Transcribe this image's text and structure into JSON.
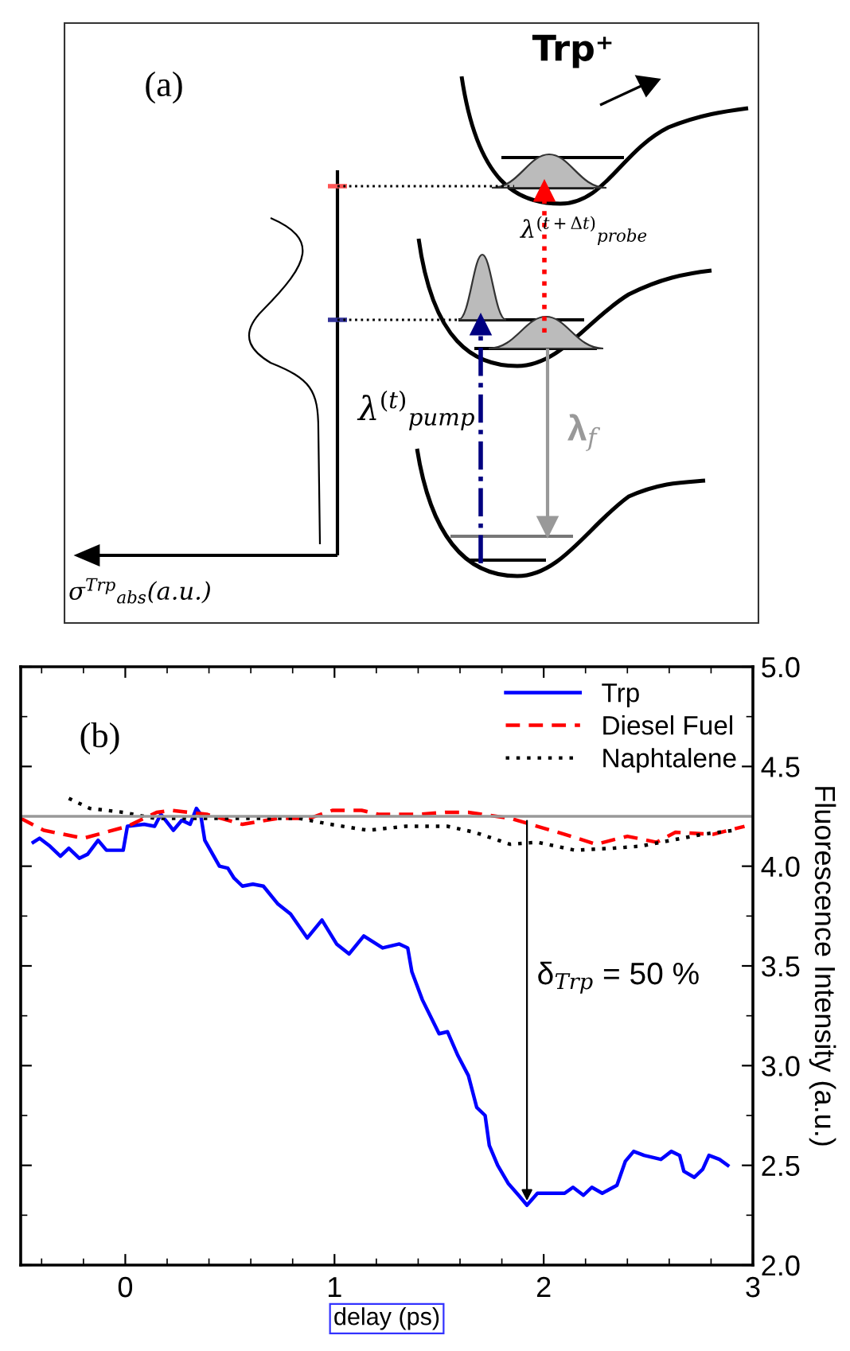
{
  "chart_data": [
    {
      "type": "other",
      "annotations": [
        "(a)",
        "Trp⁺",
        "λ$^{(t+Δt)}$$_{probe}$",
        "λ$^{(t)}$$_{pump}$",
        "λ$_{f}$",
        "σ$^{Trp}$$_{abs}$(a.u.)"
      ]
    },
    {
      "type": "line",
      "xlabel": "delay (ps)",
      "ylabel": "Fluorescence Intensity (a.u.)",
      "xlim": [
        -0.5,
        3
      ],
      "ylim": [
        2,
        5
      ],
      "xticks": [
        0,
        1,
        2,
        3
      ],
      "yticks": [
        {
          "value": 2,
          "label": "2.0"
        },
        {
          "value": 2.5,
          "label": "2.5"
        },
        {
          "value": 3,
          "label": "3.0"
        },
        {
          "value": 3.5,
          "label": "3.5"
        },
        {
          "value": 4,
          "label": "4.0"
        },
        {
          "value": 4.5,
          "label": "4.5"
        },
        {
          "value": 5,
          "label": "5.0"
        }
      ],
      "grid": false,
      "legend": "top right",
      "series": [
        {
          "name": "Trp",
          "color": "#0000ff",
          "line_style": "solid",
          "x": [
            -0.44,
            -0.41,
            -0.36,
            -0.31,
            -0.27,
            -0.22,
            -0.18,
            -0.13,
            -0.09,
            -0.01,
            0.01,
            0.09,
            0.14,
            0.17,
            0.23,
            0.27,
            0.31,
            0.34,
            0.36,
            0.38,
            0.45,
            0.49,
            0.52,
            0.56,
            0.61,
            0.66,
            0.73,
            0.79,
            0.87,
            0.94,
            1.01,
            1.07,
            1.14,
            1.23,
            1.31,
            1.35,
            1.37,
            1.42,
            1.5,
            1.54,
            1.59,
            1.64,
            1.68,
            1.72,
            1.74,
            1.78,
            1.83,
            1.88,
            1.92,
            1.97,
            2.05,
            2.1,
            2.14,
            2.19,
            2.23,
            2.28,
            2.35,
            2.39,
            2.43,
            2.48,
            2.56,
            2.61,
            2.65,
            2.67,
            2.72,
            2.76,
            2.79,
            2.84,
            2.88
          ],
          "values": [
            4.12,
            4.14,
            4.1,
            4.05,
            4.09,
            4.04,
            4.06,
            4.13,
            4.08,
            4.08,
            4.2,
            4.21,
            4.2,
            4.26,
            4.18,
            4.23,
            4.21,
            4.29,
            4.26,
            4.13,
            4.0,
            3.99,
            3.94,
            3.9,
            3.91,
            3.9,
            3.81,
            3.76,
            3.64,
            3.73,
            3.61,
            3.56,
            3.65,
            3.59,
            3.61,
            3.59,
            3.47,
            3.33,
            3.16,
            3.17,
            3.05,
            2.95,
            2.79,
            2.75,
            2.6,
            2.5,
            2.41,
            2.35,
            2.3,
            2.36,
            2.36,
            2.36,
            2.39,
            2.35,
            2.39,
            2.36,
            2.4,
            2.52,
            2.57,
            2.55,
            2.53,
            2.57,
            2.55,
            2.47,
            2.44,
            2.48,
            2.55,
            2.53,
            2.5
          ]
        },
        {
          "name": "Diesel Fuel",
          "color": "#ff0000",
          "line_style": "dashed",
          "x": [
            -0.5,
            -0.39,
            -0.2,
            0.01,
            0.15,
            0.22,
            0.39,
            0.56,
            0.73,
            0.88,
            0.99,
            1.13,
            1.21,
            1.4,
            1.53,
            1.64,
            1.84,
            1.97,
            2.1,
            2.25,
            2.4,
            2.54,
            2.63,
            2.81,
            2.96
          ],
          "values": [
            4.24,
            4.18,
            4.14,
            4.2,
            4.27,
            4.28,
            4.26,
            4.21,
            4.24,
            4.24,
            4.28,
            4.28,
            4.26,
            4.26,
            4.27,
            4.27,
            4.24,
            4.2,
            4.16,
            4.11,
            4.15,
            4.12,
            4.17,
            4.16,
            4.2
          ]
        },
        {
          "name": "Naphtalene",
          "color": "#000000",
          "line_style": "dotted",
          "x": [
            -0.27,
            -0.17,
            -0.01,
            0.14,
            0.39,
            0.6,
            0.83,
            0.98,
            1.16,
            1.34,
            1.54,
            1.67,
            1.84,
            1.97,
            2.15,
            2.33,
            2.46,
            2.61,
            2.76,
            2.91
          ],
          "values": [
            4.34,
            4.29,
            4.27,
            4.24,
            4.24,
            4.24,
            4.24,
            4.21,
            4.18,
            4.2,
            4.2,
            4.17,
            4.11,
            4.12,
            4.08,
            4.09,
            4.1,
            4.13,
            4.16,
            4.18
          ]
        }
      ],
      "ref_lines": [
        {
          "axis": "y",
          "value": 4.25,
          "color": "#999999"
        }
      ],
      "annotations": [
        "(b)",
        "δ$_{Trp}$ = 50 %"
      ]
    }
  ]
}
